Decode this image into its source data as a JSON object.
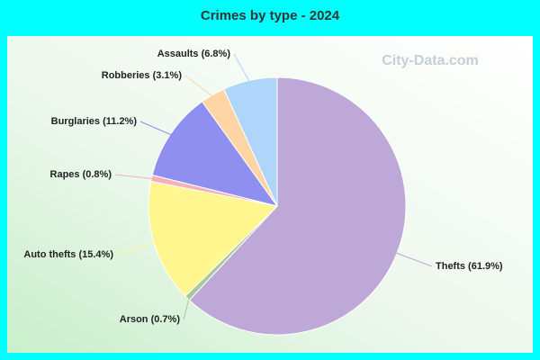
{
  "chart_data": {
    "type": "pie",
    "title": "Crimes by type - 2024",
    "watermark": "City-Data.com",
    "categories": [
      "Thefts (61.9%)",
      "Arson (0.7%)",
      "Auto thefts (15.4%)",
      "Rapes (0.8%)",
      "Burglaries (11.2%)",
      "Robberies (3.1%)",
      "Assaults (6.8%)"
    ],
    "values": [
      61.9,
      0.7,
      15.4,
      0.8,
      11.2,
      3.1,
      6.8
    ],
    "colors": [
      "#bea8d8",
      "#a9c79c",
      "#fff68f",
      "#f4b1b9",
      "#8f8ff0",
      "#ffd5a6",
      "#afd5fa"
    ]
  }
}
